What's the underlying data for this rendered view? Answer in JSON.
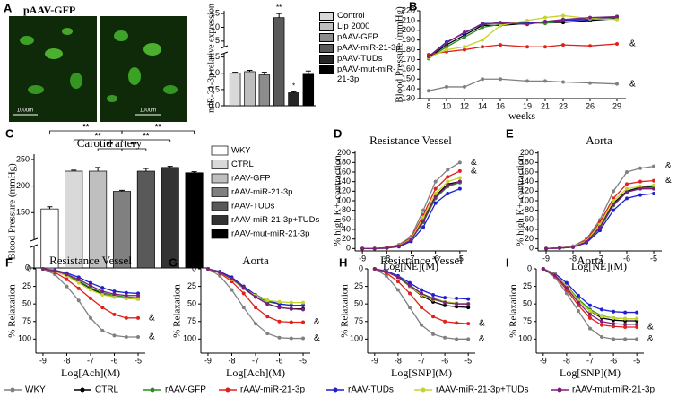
{
  "chart_data": [
    {
      "type": "bar",
      "panel": "A",
      "image_label": "pAAV-GFP",
      "scale_labels": [
        "100um",
        "100um"
      ],
      "y_label": "miR-21-3p relative expression",
      "categories": [
        "Control",
        "Lip 2000",
        "pAAV-GFP",
        "pAAV-miR-21-3p",
        "pAAV-TUDs",
        "pAAV-mut-miR-21-3p"
      ],
      "values": [
        1.0,
        1.05,
        0.95,
        13.5,
        0.4,
        0.97
      ],
      "errors": [
        0.03,
        0.04,
        0.08,
        1.5,
        0.03,
        0.1
      ],
      "colors": [
        "#d9d9d9",
        "#bfbfbf",
        "#8c8c8c",
        "#595959",
        "#262626",
        "#000000"
      ],
      "annotations": [
        {
          "text": "**",
          "category": "pAAV-miR-21-3p"
        },
        {
          "text": "*",
          "category": "pAAV-TUDs"
        }
      ],
      "ylim": [
        0,
        16
      ],
      "ybreak": [
        1.6,
        3
      ],
      "yticks": [
        {
          "value": 0,
          "label": "0.0"
        },
        {
          "value": 0.5,
          "label": "0.5"
        },
        {
          "value": 1,
          "label": "1.0"
        },
        {
          "value": 1.5,
          "label": "1.5"
        },
        5,
        10,
        15
      ]
    },
    {
      "type": "line",
      "panel": "B",
      "y_label": "Blood Pressure (mmHg)",
      "x_label": "weeks",
      "x": [
        8,
        10,
        12,
        14,
        16,
        19,
        21,
        23,
        26,
        29
      ],
      "series": [
        {
          "values": [
            138,
            142,
            142,
            150,
            150,
            148,
            148,
            147,
            146,
            145
          ]
        },
        {
          "values": [
            172,
            185,
            195,
            205,
            205,
            207,
            208,
            208,
            210,
            212
          ]
        },
        {
          "values": [
            171,
            183,
            193,
            203,
            206,
            208,
            207,
            210,
            212,
            213
          ]
        },
        {
          "values": [
            175,
            178,
            180,
            183,
            185,
            183,
            183,
            185,
            184,
            186
          ]
        },
        {
          "values": [
            173,
            188,
            197,
            207,
            207,
            207,
            209,
            210,
            211,
            214
          ]
        },
        {
          "values": [
            172,
            180,
            183,
            190,
            205,
            210,
            213,
            215,
            212,
            211
          ]
        },
        {
          "values": [
            173,
            187,
            198,
            206,
            208,
            206,
            209,
            211,
            213,
            214
          ]
        }
      ],
      "end_marks": [
        {
          "text": "&",
          "series": "rAAV-miR-21-3p"
        },
        {
          "text": "&",
          "series": "WKY"
        }
      ],
      "xlim": [
        7,
        30
      ],
      "xticks": [
        8,
        10,
        12,
        14,
        16,
        19,
        21,
        23,
        26,
        29
      ],
      "ylim": [
        130,
        220
      ],
      "yticks": [
        130,
        140,
        150,
        160,
        170,
        180,
        190,
        200,
        210,
        220
      ]
    },
    {
      "type": "bar",
      "panel": "C",
      "title": "Carotid artery",
      "y_label": "Blood Pressure (mmHg)",
      "categories": [
        "WKY",
        "CTRL",
        "rAAV-GFP",
        "rAAV-miR-21-3p",
        "rAAV-TUDs",
        "rAAV-miR-21-3p+TUDs",
        "rAAV-mut-miR-21-3p"
      ],
      "values": [
        157,
        228,
        228,
        190,
        228,
        235,
        225
      ],
      "errors": [
        4,
        2,
        7,
        2,
        5,
        2,
        2
      ],
      "colors": [
        "#ffffff",
        "#d9d9d9",
        "#bfbfbf",
        "#808080",
        "#595959",
        "#333333",
        "#000000"
      ],
      "significance": [
        {
          "text": "**",
          "from": "WKY",
          "to": "rAAV-miR-21-3p"
        },
        {
          "text": "**",
          "from": "rAAV-miR-21-3p",
          "to": "rAAV-mut-miR-21-3p"
        },
        {
          "text": "**",
          "from": "CTRL",
          "to": "rAAV-miR-21-3p"
        },
        {
          "text": "**",
          "from": "rAAV-miR-21-3p",
          "to": "rAAV-miR-21-3p+TUDs"
        },
        {
          "text": "**",
          "from": "rAAV-GFP",
          "to": "rAAV-miR-21-3p"
        },
        {
          "text": "**",
          "from": "rAAV-miR-21-3p",
          "to": "rAAV-TUDs"
        }
      ],
      "ylim": [
        0,
        260
      ],
      "ybreak": [
        50,
        100
      ],
      "yticks": [
        0,
        150,
        200,
        250
      ]
    },
    {
      "type": "line",
      "panel": "D",
      "title": "Resistance Vessel",
      "y_label": "% high K+-contraction",
      "x_label": "Log[NE](M)",
      "x": [
        -9,
        -8.5,
        -8,
        -7.5,
        -7,
        -6.5,
        -6,
        -5.5,
        -5
      ],
      "series": [
        {
          "values": [
            0,
            0,
            2,
            8,
            25,
            80,
            140,
            165,
            180
          ]
        },
        {
          "values": [
            0,
            0,
            1,
            5,
            20,
            60,
            110,
            135,
            140
          ]
        },
        {
          "values": [
            0,
            0,
            1,
            5,
            18,
            55,
            105,
            130,
            138
          ]
        },
        {
          "values": [
            0,
            0,
            2,
            7,
            22,
            70,
            125,
            150,
            162
          ]
        },
        {
          "values": [
            0,
            0,
            1,
            4,
            15,
            45,
            95,
            115,
            125
          ]
        },
        {
          "values": [
            0,
            0,
            1,
            6,
            20,
            65,
            115,
            140,
            148
          ]
        },
        {
          "values": [
            0,
            0,
            1,
            5,
            18,
            58,
            108,
            132,
            140
          ]
        }
      ],
      "end_marks": [
        {
          "text": "&",
          "series": "WKY"
        },
        {
          "text": "&",
          "series": "rAAV-miR-21-3p"
        }
      ],
      "xlim": [
        -9.3,
        -4.7
      ],
      "xticks": [
        -9,
        -8,
        -7,
        -6,
        -5
      ],
      "ylim": [
        -5,
        205
      ],
      "yticks": [
        0,
        20,
        40,
        60,
        80,
        100,
        120,
        140,
        160,
        180,
        200
      ]
    },
    {
      "type": "line",
      "panel": "E",
      "title": "Aorta",
      "y_label": "% high K+-contraction",
      "x_label": "Log[NE](M)",
      "x": [
        -9,
        -8.5,
        -8,
        -7.5,
        -7,
        -6.5,
        -6,
        -5.5,
        -5
      ],
      "series": [
        {
          "values": [
            0,
            1,
            5,
            20,
            60,
            120,
            160,
            168,
            172
          ]
        },
        {
          "values": [
            0,
            1,
            3,
            15,
            45,
            95,
            120,
            128,
            130
          ]
        },
        {
          "values": [
            0,
            1,
            3,
            14,
            42,
            90,
            118,
            126,
            128
          ]
        },
        {
          "values": [
            0,
            1,
            4,
            18,
            55,
            105,
            135,
            140,
            142
          ]
        },
        {
          "values": [
            0,
            1,
            3,
            12,
            38,
            80,
            105,
            112,
            115
          ]
        },
        {
          "values": [
            0,
            1,
            4,
            16,
            50,
            100,
            125,
            130,
            132
          ]
        },
        {
          "values": [
            0,
            1,
            3,
            14,
            45,
            92,
            118,
            125,
            125
          ]
        }
      ],
      "end_marks": [
        {
          "text": "&",
          "series": "WKY"
        },
        {
          "text": "&",
          "series": "rAAV-miR-21-3p"
        }
      ],
      "xlim": [
        -9.3,
        -4.7
      ],
      "xticks": [
        -9,
        -8,
        -7,
        -6,
        -5
      ],
      "ylim": [
        -5,
        205
      ],
      "yticks": [
        0,
        20,
        40,
        60,
        80,
        100,
        120,
        140,
        160,
        180,
        200
      ]
    },
    {
      "type": "line",
      "panel": "F",
      "title": "Resistance Vessel",
      "y_label": "% Relaxation",
      "x_label": "Log[Ach](M)",
      "x": [
        -9,
        -8.5,
        -8,
        -7.5,
        -7,
        -6.5,
        -6,
        -5.5,
        -5
      ],
      "series": [
        {
          "values": [
            0,
            8,
            25,
            45,
            70,
            88,
            95,
            97,
            97
          ]
        },
        {
          "values": [
            0,
            3,
            10,
            18,
            28,
            36,
            40,
            42,
            43
          ]
        },
        {
          "values": [
            0,
            3,
            9,
            17,
            27,
            34,
            38,
            40,
            41
          ]
        },
        {
          "values": [
            0,
            5,
            15,
            28,
            42,
            55,
            65,
            70,
            70
          ]
        },
        {
          "values": [
            0,
            2,
            6,
            12,
            20,
            27,
            32,
            34,
            35
          ]
        },
        {
          "values": [
            0,
            3,
            10,
            20,
            30,
            37,
            40,
            42,
            43
          ]
        },
        {
          "values": [
            0,
            3,
            8,
            15,
            24,
            32,
            36,
            38,
            38
          ]
        }
      ],
      "end_marks": [
        {
          "text": "&",
          "series": "rAAV-miR-21-3p"
        },
        {
          "text": "&",
          "series": "WKY"
        }
      ],
      "xlim": [
        -9.3,
        -4.7
      ],
      "xticks": [
        -9,
        -8,
        -7,
        -6,
        -5
      ],
      "ylim": [
        120,
        0
      ],
      "yticks": [
        0,
        25,
        50,
        75,
        100
      ]
    },
    {
      "type": "line",
      "panel": "G",
      "title": "Aorta",
      "y_label": "% Relaxation",
      "x_label": "Log[Ach](M)",
      "x": [
        -9,
        -8.5,
        -8,
        -7.5,
        -7,
        -6.5,
        -6,
        -5.5,
        -5
      ],
      "series": [
        {
          "values": [
            0,
            10,
            30,
            55,
            78,
            92,
            98,
            99,
            99
          ]
        },
        {
          "values": [
            0,
            5,
            15,
            28,
            40,
            50,
            55,
            57,
            57
          ]
        },
        {
          "values": [
            0,
            4,
            14,
            27,
            38,
            47,
            50,
            52,
            52
          ]
        },
        {
          "values": [
            0,
            6,
            18,
            35,
            55,
            68,
            75,
            76,
            76
          ]
        },
        {
          "values": [
            0,
            4,
            12,
            25,
            37,
            45,
            50,
            52,
            52
          ]
        },
        {
          "values": [
            0,
            5,
            15,
            28,
            38,
            45,
            47,
            48,
            48
          ]
        },
        {
          "values": [
            0,
            5,
            14,
            27,
            40,
            50,
            55,
            57,
            58
          ]
        }
      ],
      "end_marks": [
        {
          "text": "&",
          "series": "rAAV-miR-21-3p"
        },
        {
          "text": "&",
          "series": "WKY"
        }
      ],
      "xlim": [
        -9.3,
        -4.7
      ],
      "xticks": [
        -9,
        -8,
        -7,
        -6,
        -5
      ],
      "ylim": [
        120,
        0
      ],
      "yticks": [
        0,
        25,
        50,
        75,
        100
      ]
    },
    {
      "type": "line",
      "panel": "H",
      "title": "Resistance Vessel",
      "y_label": "% Relaxation",
      "x_label": "Log[SNP](M)",
      "x": [
        -9,
        -8.5,
        -8,
        -7.5,
        -7,
        -6.5,
        -6,
        -5.5,
        -5
      ],
      "series": [
        {
          "values": [
            0,
            10,
            30,
            55,
            80,
            93,
            98,
            100,
            100
          ]
        },
        {
          "values": [
            0,
            4,
            12,
            25,
            38,
            47,
            52,
            54,
            55
          ]
        },
        {
          "values": [
            0,
            4,
            11,
            23,
            35,
            42,
            47,
            49,
            50
          ]
        },
        {
          "values": [
            0,
            6,
            18,
            35,
            55,
            68,
            75,
            77,
            78
          ]
        },
        {
          "values": [
            0,
            3,
            10,
            20,
            30,
            37,
            41,
            42,
            43
          ]
        },
        {
          "values": [
            0,
            4,
            12,
            25,
            37,
            44,
            47,
            49,
            50
          ]
        },
        {
          "values": [
            0,
            4,
            12,
            24,
            35,
            43,
            48,
            50,
            50
          ]
        }
      ],
      "end_marks": [
        {
          "text": "&",
          "series": "rAAV-miR-21-3p"
        },
        {
          "text": "&",
          "series": "WKY"
        }
      ],
      "xlim": [
        -9.3,
        -4.7
      ],
      "xticks": [
        -9,
        -8,
        -7,
        -6,
        -5
      ],
      "ylim": [
        120,
        0
      ],
      "yticks": [
        0,
        25,
        50,
        75,
        100
      ]
    },
    {
      "type": "line",
      "panel": "I",
      "title": "Aorta",
      "y_label": "% Relaxation",
      "x_label": "Log[SNP](M)",
      "x": [
        -9,
        -8.5,
        -8,
        -7.5,
        -7,
        -6.5,
        -6,
        -5.5,
        -5
      ],
      "series": [
        {
          "values": [
            0,
            12,
            35,
            60,
            85,
            97,
            100,
            100,
            100
          ]
        },
        {
          "values": [
            0,
            8,
            25,
            45,
            60,
            70,
            73,
            74,
            74
          ]
        },
        {
          "values": [
            0,
            8,
            24,
            43,
            58,
            67,
            70,
            71,
            71
          ]
        },
        {
          "values": [
            0,
            10,
            30,
            52,
            70,
            80,
            82,
            83,
            83
          ]
        },
        {
          "values": [
            0,
            7,
            20,
            38,
            52,
            58,
            61,
            62,
            62
          ]
        },
        {
          "values": [
            0,
            8,
            25,
            45,
            60,
            68,
            70,
            71,
            71
          ]
        },
        {
          "values": [
            0,
            9,
            27,
            48,
            65,
            75,
            78,
            79,
            79
          ]
        }
      ],
      "end_marks": [
        {
          "text": "&",
          "series": "rAAV-miR-21-3p"
        },
        {
          "text": "&",
          "series": "WKY"
        }
      ],
      "xlim": [
        -9.3,
        -4.7
      ],
      "xticks": [
        -9,
        -8,
        -7,
        -6,
        -5
      ],
      "ylim": [
        120,
        0
      ],
      "yticks": [
        0,
        25,
        50,
        75,
        100
      ]
    }
  ],
  "legend": {
    "entries": [
      {
        "name": "WKY",
        "color": "#808080"
      },
      {
        "name": "CTRL",
        "color": "#000000"
      },
      {
        "name": "rAAV-GFP",
        "color": "#2e8b22"
      },
      {
        "name": "rAAV-miR-21-3p",
        "color": "#e0201b"
      },
      {
        "name": "rAAV-TUDs",
        "color": "#1f1fd0"
      },
      {
        "name": "rAAV-miR-21-3p+TUDs",
        "color": "#c5d32a"
      },
      {
        "name": "rAAV-mut-miR-21-3p",
        "color": "#7b1f7b"
      }
    ]
  }
}
